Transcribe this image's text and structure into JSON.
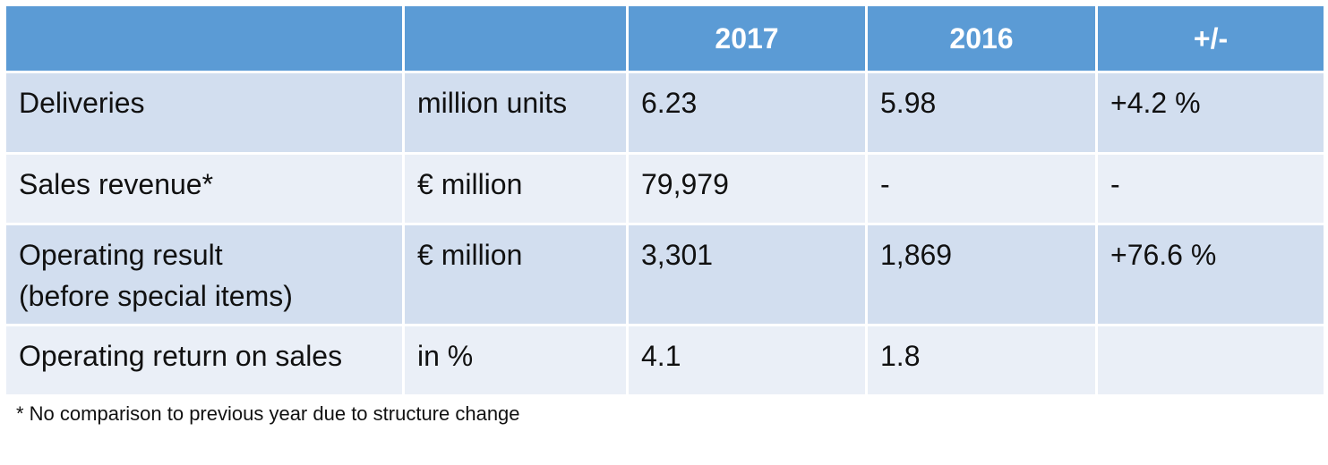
{
  "table": {
    "headers": [
      "",
      "",
      "2017",
      "2016",
      "+/-"
    ],
    "rows": [
      {
        "label_lines": [
          "Deliveries"
        ],
        "unit": "million units",
        "y2017": "6.23",
        "y2016": "5.98",
        "change": "+4.2 %"
      },
      {
        "label_lines": [
          "Sales revenue*"
        ],
        "unit": "€ million",
        "y2017": "79,979",
        "y2016": "-",
        "change": "-"
      },
      {
        "label_lines": [
          "Operating result",
          "(before special items)"
        ],
        "unit": "€ million",
        "y2017": "3,301",
        "y2016": "1,869",
        "change": "+76.6 %"
      },
      {
        "label_lines": [
          "Operating return on sales"
        ],
        "unit": "in %",
        "y2017": "4.1",
        "y2016": "1.8",
        "change": ""
      }
    ]
  },
  "footnote": "* No comparison to previous year due to structure change",
  "colors": {
    "header_bg": "#5b9bd5",
    "row_odd_bg": "#d2deef",
    "row_even_bg": "#eaeff7",
    "header_text": "#ffffff"
  }
}
